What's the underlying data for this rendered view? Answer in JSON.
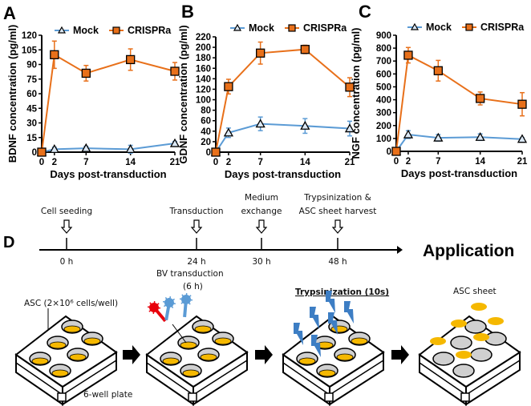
{
  "colors": {
    "mock": "#5b9bd5",
    "crispra": "#e8701a",
    "well_fill": "#f5b800",
    "well": "#d0d0d0",
    "bv_red": "#e8000b",
    "bv_blue": "#5b9bd5",
    "trypsin": "#3d7ec4"
  },
  "chart_data": [
    {
      "panel": "A",
      "type": "line",
      "ylabel": "BDNF concentration (pg/ml)",
      "xlabel": "Days post-transduction",
      "x": [
        0,
        2,
        7,
        14,
        21
      ],
      "xticks": [
        "0",
        "2",
        "7",
        "14",
        "21"
      ],
      "ylim": [
        0,
        120
      ],
      "yticks": [
        0,
        15,
        30,
        45,
        60,
        75,
        90,
        105,
        120
      ],
      "legend": "top",
      "series": [
        {
          "name": "Mock",
          "marker": "triangle",
          "values": [
            0,
            3,
            4,
            3,
            9
          ],
          "errors": [
            0,
            2,
            2,
            4,
            2
          ]
        },
        {
          "name": "CRISPRa",
          "marker": "square",
          "values": [
            0,
            100,
            81,
            95,
            83
          ],
          "errors": [
            0,
            14,
            8,
            11,
            9
          ]
        }
      ]
    },
    {
      "panel": "B",
      "type": "line",
      "ylabel": "GDNF concentration (pg/ml)",
      "xlabel": "Days post-transduction",
      "x": [
        0,
        2,
        7,
        14,
        21
      ],
      "xticks": [
        "0",
        "2",
        "7",
        "14",
        "21"
      ],
      "ylim": [
        0,
        220
      ],
      "yticks": [
        0,
        20,
        40,
        60,
        80,
        100,
        120,
        140,
        160,
        180,
        200,
        220
      ],
      "legend": "top",
      "series": [
        {
          "name": "Mock",
          "marker": "triangle",
          "values": [
            0,
            37,
            54,
            50,
            45
          ],
          "errors": [
            0,
            9,
            13,
            14,
            14
          ]
        },
        {
          "name": "CRISPRa",
          "marker": "square",
          "values": [
            0,
            125,
            189,
            196,
            124
          ],
          "errors": [
            0,
            14,
            21,
            8,
            18
          ]
        }
      ]
    },
    {
      "panel": "C",
      "type": "line",
      "ylabel": "NGF concentration (pg/ml)",
      "xlabel": "Days post-transduction",
      "x": [
        0,
        2,
        7,
        14,
        21
      ],
      "xticks": [
        "0",
        "2",
        "7",
        "14",
        "21"
      ],
      "ylim": [
        0,
        900
      ],
      "yticks": [
        0,
        100,
        200,
        300,
        400,
        500,
        600,
        700,
        800,
        900
      ],
      "legend": "top",
      "series": [
        {
          "name": "Mock",
          "marker": "triangle",
          "values": [
            0,
            130,
            105,
            110,
            95
          ],
          "errors": [
            0,
            30,
            25,
            25,
            10
          ]
        },
        {
          "name": "CRISPRa",
          "marker": "square",
          "values": [
            0,
            745,
            625,
            410,
            365
          ],
          "errors": [
            0,
            60,
            80,
            50,
            90
          ]
        }
      ]
    }
  ],
  "panel_d": {
    "letter": "D",
    "events": [
      {
        "above": [
          "Cell seeding"
        ],
        "time": "0 h"
      },
      {
        "above": [
          "Transduction"
        ],
        "time": "24 h"
      },
      {
        "above": [
          "Medium",
          "exchange"
        ],
        "time": "30 h"
      },
      {
        "above": [
          "Trypsinization &",
          "ASC sheet harvest"
        ],
        "time": "48 h"
      }
    ],
    "application": "Application",
    "labels": {
      "asc_seed": "ASC (2×10⁶ cells/well)",
      "plate": "6-well plate",
      "bv_1": "BV transduction",
      "bv_2": "(6 h)",
      "trypsin": "Trypsinization (10s)",
      "sheet": "ASC sheet"
    }
  }
}
